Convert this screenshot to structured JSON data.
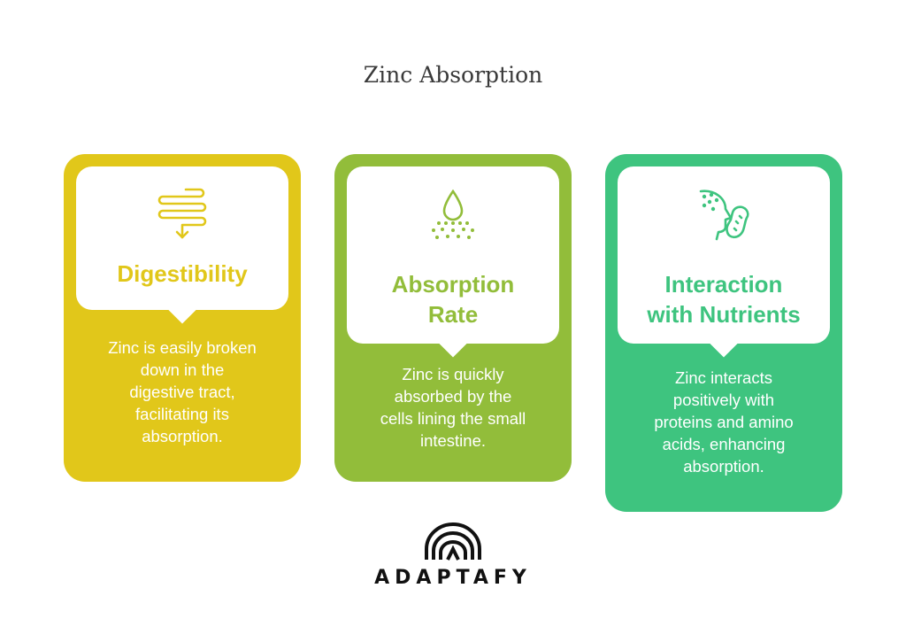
{
  "title": "Zinc Absorption",
  "colors": {
    "card1": "#e1c71a",
    "card2": "#92bd3a",
    "card3": "#3ec47f"
  },
  "cards": [
    {
      "icon": "intestine-icon",
      "heading_line1": "Digestibility",
      "heading_line2": "",
      "body": [
        "Zinc is easily broken",
        "down in the",
        "digestive tract,",
        "facilitating its",
        "absorption."
      ]
    },
    {
      "icon": "droplet-absorption-icon",
      "heading_line1": "Absorption",
      "heading_line2": "Rate",
      "body": [
        "Zinc is quickly",
        "absorbed by the",
        "cells lining the small",
        "intestine."
      ]
    },
    {
      "icon": "head-and-peanut-icon",
      "heading_line1": "Interaction",
      "heading_line2": "with Nutrients",
      "body": [
        "Zinc interacts",
        "positively with",
        "proteins and amino",
        "acids, enhancing",
        "absorption."
      ]
    }
  ],
  "logo": {
    "icon": "adaptafy-logo-icon",
    "text": "ADAPTAFY"
  }
}
